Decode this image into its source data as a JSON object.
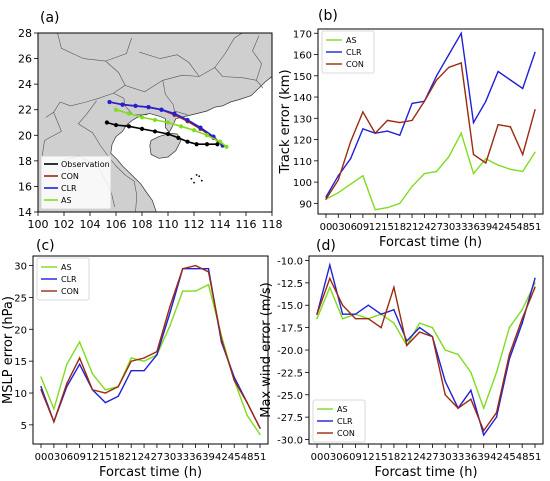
{
  "colors": {
    "AS": "#7fdc1f",
    "CLR": "#2020d8",
    "CON": "#9c2a10",
    "Observation": "#000000",
    "land": "#cfcfcf",
    "sea": "#ffffff",
    "border": "#555555"
  },
  "chart_data": [
    {
      "panel": "(a)",
      "type": "map",
      "xlim": [
        100,
        118
      ],
      "ylim": [
        14,
        28
      ],
      "xticks": [
        "100",
        "102",
        "104",
        "106",
        "108",
        "110",
        "112",
        "114",
        "116",
        "118"
      ],
      "yticks": [
        "14",
        "16",
        "18",
        "20",
        "22",
        "24",
        "26",
        "28"
      ],
      "legend": {
        "placement": "lower-left",
        "entries": [
          "Observation",
          "CON",
          "CLR",
          "AS"
        ]
      },
      "series": [
        {
          "name": "Observation",
          "lon": [
            105.3,
            106.0,
            107.0,
            108.0,
            109.0,
            110.0,
            110.8,
            111.5,
            112.2,
            113.0,
            113.8
          ],
          "lat": [
            21.0,
            20.8,
            20.7,
            20.5,
            20.3,
            20.1,
            19.8,
            19.5,
            19.3,
            19.3,
            19.3
          ]
        },
        {
          "name": "CON",
          "lon": [
            105.5,
            106.5,
            107.5,
            108.5,
            109.5,
            110.5,
            111.5,
            112.5,
            113.5,
            114.2
          ],
          "lat": [
            22.6,
            22.4,
            22.3,
            22.2,
            22.0,
            21.6,
            21.1,
            20.5,
            19.8,
            19.2
          ]
        },
        {
          "name": "CLR",
          "lon": [
            105.5,
            106.5,
            107.5,
            108.5,
            109.5,
            110.5,
            111.5,
            112.5,
            113.5,
            114.2
          ],
          "lat": [
            22.6,
            22.4,
            22.3,
            22.2,
            22.0,
            21.7,
            21.2,
            20.6,
            19.9,
            19.2
          ]
        },
        {
          "name": "AS",
          "lon": [
            106.0,
            107.0,
            108.0,
            109.0,
            110.0,
            111.0,
            112.0,
            113.0,
            114.0,
            114.5
          ],
          "lat": [
            22.0,
            21.7,
            21.4,
            21.2,
            21.0,
            20.7,
            20.4,
            20.0,
            19.5,
            19.1
          ]
        }
      ]
    },
    {
      "panel": "(b)",
      "type": "line",
      "xlabel": "Forcast time (h)",
      "ylabel": "Track error (km)",
      "x": [
        "00",
        "03",
        "06",
        "09",
        "12",
        "15",
        "18",
        "21",
        "24",
        "27",
        "30",
        "33",
        "36",
        "39",
        "42",
        "45",
        "48",
        "51"
      ],
      "ylim": [
        85,
        172
      ],
      "yticks": [
        90,
        100,
        110,
        120,
        130,
        140,
        150,
        160,
        170
      ],
      "legend": {
        "placement": "top-left",
        "entries": [
          "AS",
          "CLR",
          "CON"
        ]
      },
      "series": [
        {
          "name": "AS",
          "values": [
            92,
            95,
            99,
            103,
            87,
            88,
            90,
            98,
            104,
            105,
            112,
            123,
            104,
            111,
            108,
            106,
            105,
            114
          ]
        },
        {
          "name": "CLR",
          "values": [
            93,
            103,
            111,
            125,
            123,
            124,
            122,
            137,
            138,
            150,
            160,
            170,
            128,
            138,
            152,
            148,
            144,
            161
          ]
        },
        {
          "name": "CON",
          "values": [
            92,
            101,
            119,
            133,
            123,
            129,
            128,
            129,
            138,
            148,
            154,
            156,
            113,
            109,
            127,
            126,
            113,
            134
          ]
        }
      ]
    },
    {
      "panel": "(c)",
      "type": "line",
      "xlabel": "Forcast time (h)",
      "ylabel": "MSLP error (hPa)",
      "x": [
        "00",
        "03",
        "06",
        "09",
        "12",
        "15",
        "18",
        "21",
        "24",
        "27",
        "30",
        "33",
        "36",
        "39",
        "42",
        "45",
        "48",
        "51"
      ],
      "ylim": [
        2,
        31.5
      ],
      "yticks": [
        5,
        10,
        15,
        20,
        25,
        30
      ],
      "legend": {
        "placement": "top-left",
        "entries": [
          "AS",
          "CLR",
          "CON"
        ]
      },
      "series": [
        {
          "name": "AS",
          "values": [
            12.5,
            7.5,
            14.5,
            18.0,
            13.0,
            10.5,
            11.0,
            15.5,
            15.0,
            16.0,
            20.5,
            26.0,
            26.0,
            27.0,
            19.0,
            12.0,
            6.5,
            3.5
          ]
        },
        {
          "name": "CLR",
          "values": [
            11.0,
            5.5,
            11.0,
            14.5,
            10.5,
            8.5,
            9.5,
            13.5,
            13.5,
            16.0,
            22.5,
            29.5,
            29.5,
            29.5,
            18.0,
            12.5,
            8.5,
            4.5
          ]
        },
        {
          "name": "CON",
          "values": [
            10.5,
            5.5,
            11.5,
            15.5,
            10.5,
            10.0,
            11.0,
            15.0,
            15.5,
            16.5,
            23.5,
            29.5,
            30.0,
            29.0,
            18.5,
            12.0,
            8.5,
            4.5
          ]
        }
      ]
    },
    {
      "panel": "(d)",
      "type": "line",
      "xlabel": "Forcast time (h)",
      "ylabel": "Max wind error (m/s)",
      "x": [
        "00",
        "03",
        "06",
        "09",
        "12",
        "15",
        "18",
        "21",
        "24",
        "27",
        "30",
        "33",
        "36",
        "39",
        "42",
        "45",
        "48",
        "51"
      ],
      "ylim": [
        -30.5,
        -9.5
      ],
      "yticks": [
        -30.0,
        -27.5,
        -25.0,
        -22.5,
        -20.0,
        -17.5,
        -15.0,
        -12.5,
        -10.0
      ],
      "legend": {
        "placement": "bottom-left",
        "entries": [
          "AS",
          "CLR",
          "CON"
        ]
      },
      "series": [
        {
          "name": "AS",
          "values": [
            -16.5,
            -13.0,
            -16.5,
            -16.0,
            -16.5,
            -16.0,
            -17.0,
            -19.5,
            -17.0,
            -17.5,
            -20.0,
            -20.5,
            -22.5,
            -26.5,
            -22.5,
            -17.5,
            -15.5,
            -12.5
          ]
        },
        {
          "name": "CLR",
          "values": [
            -16.0,
            -10.5,
            -16.0,
            -16.0,
            -15.0,
            -16.0,
            -15.5,
            -19.0,
            -17.5,
            -18.5,
            -23.5,
            -26.5,
            -24.5,
            -29.5,
            -27.5,
            -21.0,
            -17.0,
            -12.0
          ]
        },
        {
          "name": "CON",
          "values": [
            -16.0,
            -12.0,
            -15.0,
            -16.5,
            -16.5,
            -17.5,
            -13.0,
            -19.5,
            -18.0,
            -18.5,
            -25.0,
            -26.5,
            -25.5,
            -29.0,
            -27.0,
            -20.5,
            -16.5,
            -13.0
          ]
        }
      ]
    }
  ]
}
